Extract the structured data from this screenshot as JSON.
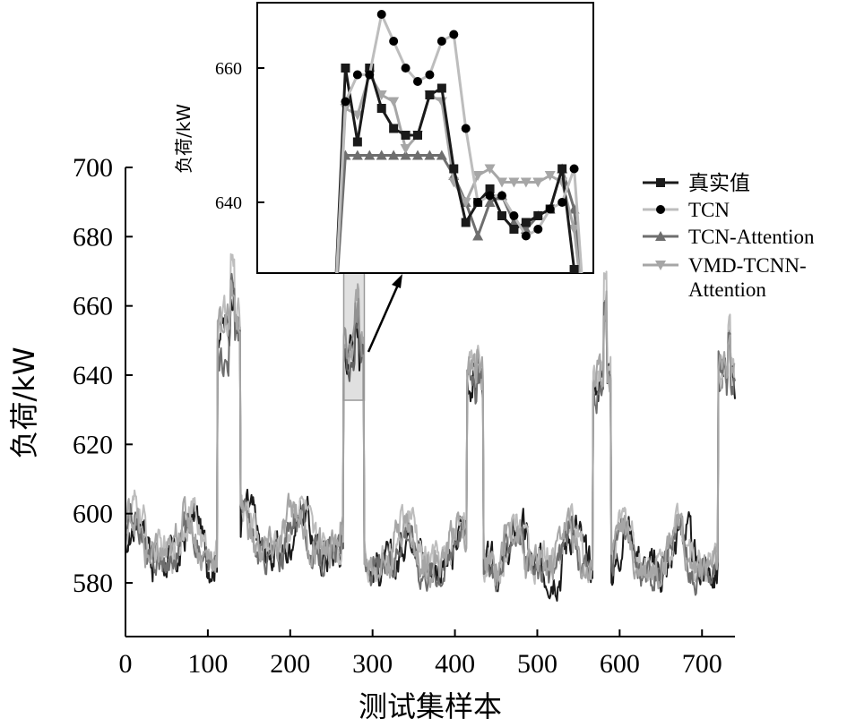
{
  "chart_data": {
    "type": "line",
    "title": "",
    "xlabel": "测试集样本",
    "ylabel": "负荷/kW",
    "xlim": [
      0,
      740
    ],
    "ylim": [
      567,
      700
    ],
    "xticks": [
      "0",
      "100",
      "200",
      "300",
      "400",
      "500",
      "600",
      "700"
    ],
    "yticks": [
      "580",
      "600",
      "620",
      "640",
      "660",
      "680",
      "700"
    ],
    "grid": false,
    "legend_position": "right",
    "segments": [
      {
        "x0": 0,
        "x1": 112,
        "base": 595
      },
      {
        "x0": 112,
        "x1": 140,
        "base": 655,
        "plateau": 647,
        "peak": 670
      },
      {
        "x0": 140,
        "x1": 265,
        "base": 597
      },
      {
        "x0": 265,
        "x1": 290,
        "base": 648,
        "plateau": 645,
        "peak": 662
      },
      {
        "x0": 290,
        "x1": 415,
        "base": 593
      },
      {
        "x0": 415,
        "x1": 435,
        "base": 640,
        "plateau": 644,
        "peak": 648
      },
      {
        "x0": 435,
        "x1": 568,
        "base": 592
      },
      {
        "x0": 568,
        "x1": 590,
        "base": 640,
        "plateau": 635,
        "peak": 668
      },
      {
        "x0": 590,
        "x1": 720,
        "base": 592
      },
      {
        "x0": 720,
        "x1": 740,
        "base": 640,
        "plateau": 644,
        "peak": 655
      }
    ],
    "series": [
      {
        "name": "真实值",
        "color": "#1a1a1a",
        "marker": "square",
        "offset": 0,
        "noise": 9
      },
      {
        "name": "TCN",
        "color": "#bdbdbd",
        "marker": "circle",
        "offset": 2,
        "noise": 8
      },
      {
        "name": "TCN-Attention",
        "color": "#6e6e6e",
        "marker": "triangle-up",
        "offset": -1,
        "noise": 7
      },
      {
        "name": "VMD-TCNN-Attention",
        "color": "#a6a6a6",
        "marker": "triangle-down",
        "offset": 1,
        "noise": 8
      }
    ],
    "zoom_region": {
      "x": [
        265,
        290
      ],
      "y": [
        634,
        670
      ]
    },
    "inset": {
      "ylabel": "负荷/kW",
      "yticks": [
        "640",
        "660"
      ],
      "ylim": [
        630,
        669
      ],
      "x": [
        0,
        1,
        2,
        3,
        4,
        5,
        6,
        7,
        8,
        9,
        10,
        11,
        12,
        13,
        14,
        15,
        16,
        17,
        18,
        19,
        20,
        21
      ],
      "series": [
        {
          "name": "真实值",
          "values": [
            620,
            660,
            649,
            660,
            654,
            651,
            650,
            650,
            656,
            657,
            645,
            637,
            640,
            642,
            638,
            636,
            637,
            638,
            639,
            645,
            630,
            620
          ]
        },
        {
          "name": "TCN",
          "values": [
            620,
            655,
            659,
            659,
            668,
            664,
            660,
            658,
            659,
            664,
            665,
            651,
            640,
            641,
            641,
            638,
            635,
            636,
            639,
            640,
            645,
            620
          ]
        },
        {
          "name": "TCN-Attention",
          "values": [
            620,
            647,
            647,
            647,
            647,
            647,
            647,
            647,
            647,
            647,
            644,
            640,
            635,
            640,
            641,
            637,
            636,
            638,
            639,
            645,
            639,
            620
          ]
        },
        {
          "name": "VMD-TCNN-Attention",
          "values": [
            620,
            654,
            653,
            659,
            656,
            655,
            648,
            650,
            656,
            655,
            643,
            640,
            644,
            645,
            643,
            643,
            643,
            643,
            644,
            643,
            636,
            620
          ]
        }
      ]
    }
  }
}
